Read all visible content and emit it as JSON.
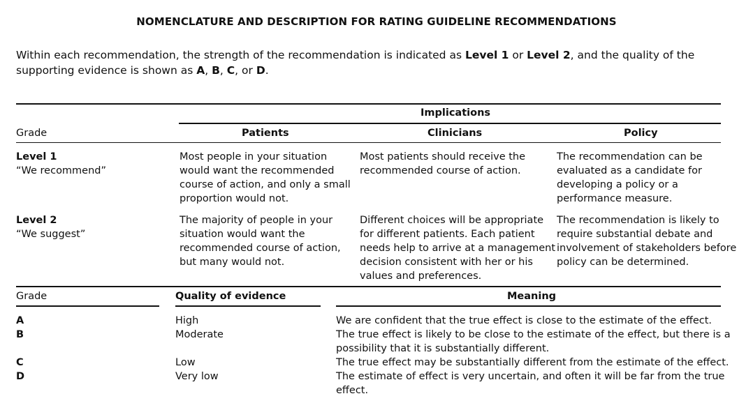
{
  "title": "NOMENCLATURE AND DESCRIPTION FOR RATING GUIDELINE RECOMMENDATIONS",
  "intro": {
    "part1": "Within each recommendation, the strength of the recommendation is indicated as ",
    "level1": "Level 1",
    "or1": " or ",
    "level2": "Level 2",
    "part2": ", and the quality of the supporting evidence is shown as ",
    "a": "A",
    "sep1": ", ",
    "b": "B",
    "sep2": ", ",
    "c": "C",
    "or2": ", or ",
    "d": "D",
    "end": "."
  },
  "table1": {
    "implications_label": "Implications",
    "headers": {
      "grade": "Grade",
      "patients": "Patients",
      "clinicians": "Clinicians",
      "policy": "Policy"
    },
    "rows": [
      {
        "level": "Level 1",
        "phrase": "“We recommend”",
        "patients": [
          "Most people in your situation",
          "would want the recommended",
          "course of action, and only a small",
          "proportion would not."
        ],
        "clinicians": [
          "Most patients should receive the",
          "recommended course of action."
        ],
        "policy": [
          "The recommendation can be",
          "evaluated as a candidate for",
          "developing a policy or a",
          "performance measure."
        ]
      },
      {
        "level": "Level 2",
        "phrase": "“We suggest”",
        "patients": [
          "The majority of people in your",
          "situation would want the",
          "recommended course of action,",
          "but many would not."
        ],
        "clinicians": [
          "Different choices will be appropriate",
          "for different patients. Each patient",
          "needs help to arrive at a management",
          "decision consistent with her or his",
          "values and preferences."
        ],
        "policy": [
          "The recommendation is likely to",
          "require substantial debate and",
          "involvement of stakeholders before",
          "policy can be determined."
        ]
      }
    ]
  },
  "table2": {
    "headers": {
      "grade": "Grade",
      "quality": "Quality of evidence",
      "meaning": "Meaning"
    },
    "rows": [
      {
        "grade": "A",
        "quality": "High",
        "meaning": [
          "We are confident that the true effect is close to the estimate of the effect."
        ]
      },
      {
        "grade": "B",
        "quality": "Moderate",
        "meaning": [
          "The true effect is likely to be close to the estimate of the effect, but there is a",
          "possibility that it is substantially different."
        ]
      },
      {
        "grade": "C",
        "quality": "Low",
        "meaning": [
          "The true effect may be substantially different from the estimate of the effect."
        ]
      },
      {
        "grade": "D",
        "quality": "Very low",
        "meaning": [
          "The estimate of effect is very uncertain, and often it will be far from the true effect."
        ]
      }
    ]
  }
}
